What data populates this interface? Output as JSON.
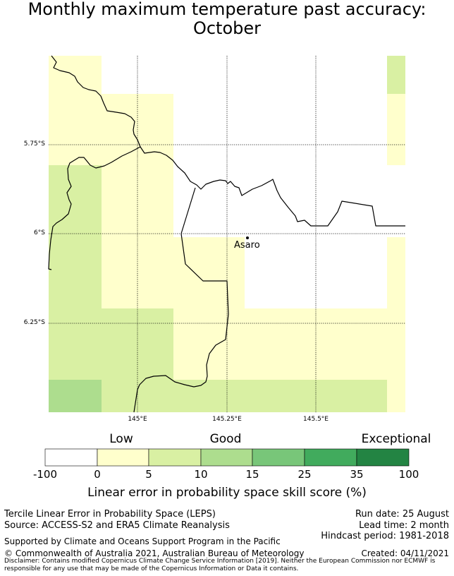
{
  "title": "Monthly maximum temperature past accuracy:\nOctober",
  "map": {
    "lat_labels": [
      "5.75°S",
      "6°S",
      "6.25°S"
    ],
    "lon_labels": [
      "145°E",
      "145.25°E",
      "145.5°E"
    ],
    "town": "Asaro",
    "cell_colors": {
      "lowest": "#ffffcc",
      "low": "#d9f0a3",
      "good": "#addd8e"
    },
    "coastline_color": "#000000",
    "grid_style": "dotted"
  },
  "legend": {
    "category_labels": [
      "Low",
      "Good",
      "Exceptional"
    ],
    "ticks": [
      "-100",
      "0",
      "5",
      "10",
      "15",
      "25",
      "35",
      "100"
    ],
    "colors": [
      "#ffffff",
      "#ffffcc",
      "#d9f0a3",
      "#addd8e",
      "#78c679",
      "#41ab5d",
      "#238443"
    ],
    "title": "Linear error in probability space skill score (%)"
  },
  "footer": {
    "left_line1": "Tercile Linear Error in Probability Space (LEPS)",
    "left_line2": "Source: ACCESS-S2 and ERA5 Climate Reanalysis",
    "supported": "Supported by Climate and Oceans Support Program in the Pacific",
    "copyright": "© Commonwealth of Australia 2021, Australian Bureau of Meteorology",
    "run_date": "Run date: 25 August",
    "lead_time": "Lead time: 2 month",
    "hindcast": "Hindcast period: 1981-2018",
    "created": "Created: 04/11/2021",
    "disclaimer": "Disclaimer: Contains modified Copernicus Climate Change Service Information [2019]. Neither the European Commission nor ECMWF is responsible for any use that may be made of the Copernicus Information or Data it contains."
  }
}
